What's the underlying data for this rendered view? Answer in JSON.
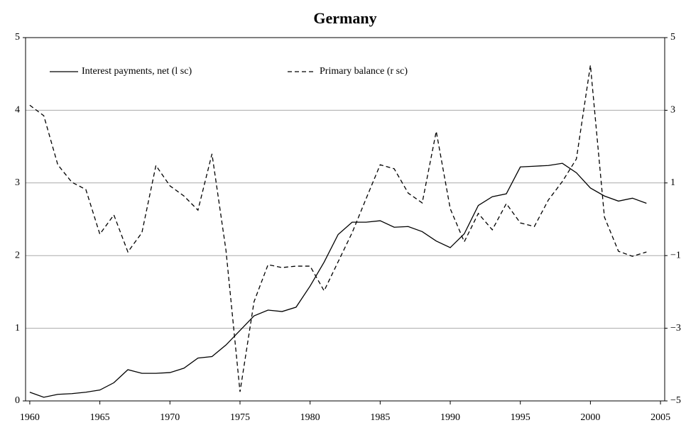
{
  "chart_data": {
    "type": "line",
    "title": "Germany",
    "x": [
      1960,
      1961,
      1962,
      1963,
      1964,
      1965,
      1966,
      1967,
      1968,
      1969,
      1970,
      1971,
      1972,
      1973,
      1974,
      1975,
      1976,
      1977,
      1978,
      1979,
      1980,
      1981,
      1982,
      1983,
      1984,
      1985,
      1986,
      1987,
      1988,
      1989,
      1990,
      1991,
      1992,
      1993,
      1994,
      1995,
      1996,
      1997,
      1998,
      1999,
      2000,
      2001,
      2002,
      2003,
      2004
    ],
    "series": [
      {
        "name": "Interest payments, net (l sc)",
        "color": "#000000",
        "dash": false,
        "values": [
          0.12,
          0.05,
          0.09,
          0.1,
          0.12,
          0.15,
          0.25,
          0.43,
          0.38,
          0.38,
          0.39,
          0.45,
          0.59,
          0.61,
          0.77,
          0.97,
          1.17,
          1.25,
          1.23,
          1.29,
          1.58,
          1.91,
          2.29,
          2.46,
          2.46,
          2.48,
          2.39,
          2.4,
          2.33,
          2.2,
          2.11,
          2.3,
          2.69,
          2.81,
          2.85,
          3.22,
          3.23,
          3.24,
          3.27,
          3.14,
          2.93,
          2.82,
          2.75,
          2.79,
          2.72
        ]
      },
      {
        "name": "Primary balance (r sc)",
        "color": "#000000",
        "dash": true,
        "axis": "y2",
        "values": [
          3.14,
          2.85,
          1.5,
          1.02,
          0.82,
          -0.41,
          0.12,
          -0.9,
          -0.37,
          1.48,
          0.92,
          0.64,
          0.25,
          1.8,
          -0.86,
          -4.75,
          -2.27,
          -1.25,
          -1.33,
          -1.29,
          -1.29,
          -1.97,
          -1.17,
          -0.37,
          0.57,
          1.5,
          1.39,
          0.72,
          0.45,
          2.42,
          0.29,
          -0.62,
          0.16,
          -0.29,
          0.43,
          -0.1,
          -0.2,
          0.53,
          1.04,
          1.66,
          4.24,
          0.06,
          -0.88,
          -1.02,
          -0.9
        ]
      }
    ],
    "xlim": [
      1959.7,
      2005.3
    ],
    "xticks": [
      1960,
      1965,
      1970,
      1975,
      1980,
      1985,
      1990,
      1995,
      2000,
      2005
    ],
    "ylim": [
      0,
      5
    ],
    "yticks": [
      0,
      1,
      2,
      3,
      4,
      5
    ],
    "y2lim": [
      -5,
      5
    ],
    "y2ticks": [
      {
        "value": -5,
        "label": "−5"
      },
      {
        "value": -3,
        "label": "−3"
      },
      {
        "value": -1,
        "label": "−1"
      },
      1,
      3,
      5
    ],
    "grid": true,
    "legend": "top-left"
  }
}
